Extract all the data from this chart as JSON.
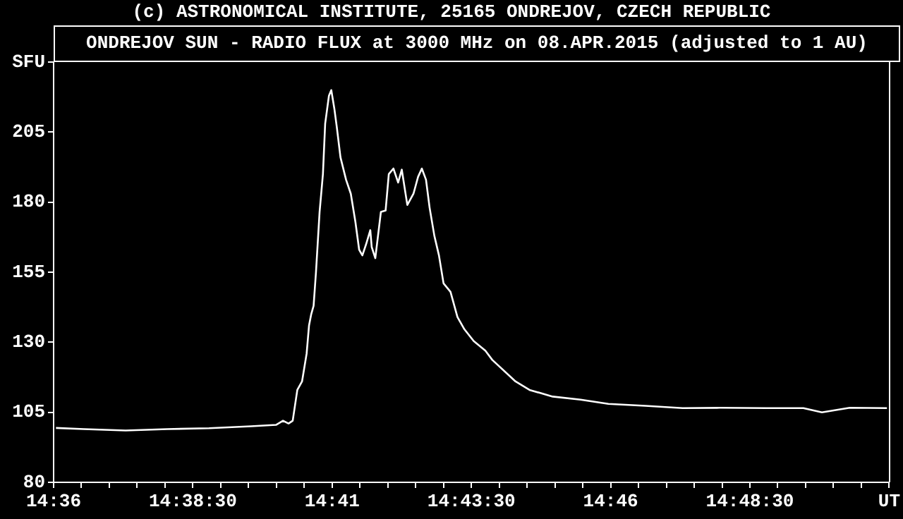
{
  "chart_data": {
    "type": "line",
    "title": "(c) ASTRONOMICAL INSTITUTE, 25165 ONDREJOV, CZECH REPUBLIC",
    "subtitle": "ONDREJOV SUN - RADIO FLUX at 3000 MHz on 08.APR.2015 (adjusted to 1 AU)",
    "x": [
      14.60071,
      14.60904,
      14.62154,
      14.63404,
      14.64654,
      14.65904,
      14.66654,
      14.66863,
      14.67029,
      14.67154,
      14.67292,
      14.67433,
      14.67571,
      14.67642,
      14.67708,
      14.67779,
      14.6785,
      14.67958,
      14.68058,
      14.68125,
      14.68238,
      14.68308,
      14.68404,
      14.68475,
      14.68583,
      14.6875,
      14.68892,
      14.69029,
      14.69142,
      14.69238,
      14.6935,
      14.69475,
      14.69517,
      14.69625,
      14.69792,
      14.69933,
      14.70029,
      14.70167,
      14.70308,
      14.70417,
      14.70583,
      14.70767,
      14.70904,
      14.71017,
      14.71142,
      14.7125,
      14.71392,
      14.71529,
      14.71667,
      14.71875,
      14.72083,
      14.72292,
      14.72571,
      14.72917,
      14.73125,
      14.73821,
      14.74238,
      14.74933,
      14.75767,
      14.766,
      14.77708,
      14.78821,
      14.79933,
      14.81321,
      14.82433,
      14.82988,
      14.83821,
      14.84933
    ],
    "values": [
      99.4,
      99,
      98.5,
      99,
      99.3,
      100,
      100.5,
      102,
      101,
      102,
      113,
      116,
      126,
      136,
      140,
      143,
      155,
      176.5,
      190,
      208,
      218,
      220,
      213,
      206.6,
      196,
      188,
      183,
      173,
      163,
      161,
      165,
      170,
      164,
      160,
      176.5,
      177,
      190,
      192,
      187,
      191.6,
      179,
      183,
      189,
      192,
      188,
      178,
      168,
      161,
      151,
      148,
      139,
      134.6,
      130.4,
      127,
      123.7,
      116,
      113,
      110.6,
      109.5,
      108,
      107.3,
      106.5,
      106.6,
      106.5,
      106.5,
      105,
      106.6,
      106.5
    ],
    "color": "#ffffff",
    "marker": "none",
    "xlim": [
      14.6,
      14.85
    ],
    "xticks": [
      {
        "value": 14.6,
        "label": "14:36"
      },
      {
        "value": 14.60833,
        "label": null
      },
      {
        "value": 14.61667,
        "label": null
      },
      {
        "value": 14.625,
        "label": null
      },
      {
        "value": 14.63333,
        "label": null
      },
      {
        "value": 14.64167,
        "label": "14:38:30"
      },
      {
        "value": 14.65,
        "label": null
      },
      {
        "value": 14.65833,
        "label": null
      },
      {
        "value": 14.66667,
        "label": null
      },
      {
        "value": 14.675,
        "label": null
      },
      {
        "value": 14.68333,
        "label": "14:41"
      },
      {
        "value": 14.69167,
        "label": null
      },
      {
        "value": 14.7,
        "label": null
      },
      {
        "value": 14.70833,
        "label": null
      },
      {
        "value": 14.71667,
        "label": null
      },
      {
        "value": 14.725,
        "label": "14:43:30"
      },
      {
        "value": 14.73333,
        "label": null
      },
      {
        "value": 14.74167,
        "label": null
      },
      {
        "value": 14.75,
        "label": null
      },
      {
        "value": 14.75833,
        "label": null
      },
      {
        "value": 14.76667,
        "label": "14:46"
      },
      {
        "value": 14.775,
        "label": null
      },
      {
        "value": 14.78333,
        "label": null
      },
      {
        "value": 14.79167,
        "label": null
      },
      {
        "value": 14.8,
        "label": null
      },
      {
        "value": 14.80833,
        "label": "14:48:30"
      },
      {
        "value": 14.81667,
        "label": null
      },
      {
        "value": 14.825,
        "label": null
      },
      {
        "value": 14.83333,
        "label": null
      },
      {
        "value": 14.84167,
        "label": null
      },
      {
        "value": 14.85,
        "label": "UT"
      }
    ],
    "ylim": [
      80,
      230
    ],
    "yticks": [
      80,
      105,
      130,
      155,
      180,
      205,
      {
        "value": 230,
        "label": "SFU"
      }
    ]
  }
}
